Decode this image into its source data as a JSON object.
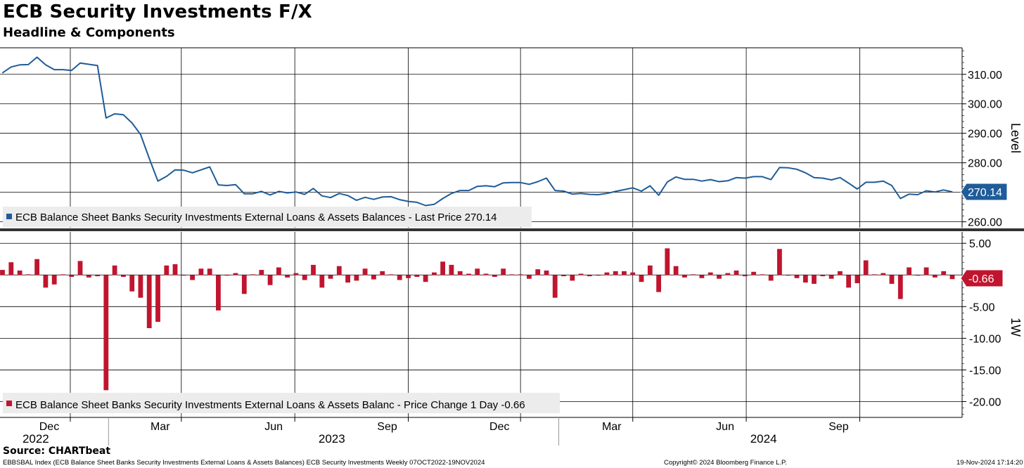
{
  "header": {
    "title": "ECB Security Investments F/X",
    "subtitle": "Headline & Components"
  },
  "footer": {
    "source": "Source: CHARTbeat",
    "description": "EBBSBAL Index (ECB Balance Sheet Banks Security Investments External Loans & Assets Balances) ECB Security Investments  Weekly 07OCT2022-19NOV2024",
    "copyright": "Copyright© 2024 Bloomberg Finance L.P.",
    "timestamp": "19-Nov-2024 17:14:20"
  },
  "colors": {
    "level": "#1f5c99",
    "change": "#c0152f",
    "grid": "#000000",
    "legend_bg": "#ececec"
  },
  "chart_data": [
    {
      "type": "line",
      "ylabel": "Level",
      "ylim": [
        258,
        319
      ],
      "yticks": [
        "260.00",
        "270.00",
        "280.00",
        "290.00",
        "300.00",
        "310.00"
      ],
      "legend": "ECB Balance Sheet Banks Security Investments External Loans & Assets Balances - Last Price 270.14",
      "last_value_label": "270.14",
      "x_start": "2022-10-07",
      "x_interval_days": 7,
      "values": [
        310.5,
        312.5,
        313.2,
        313.3,
        315.8,
        313.2,
        311.6,
        311.6,
        311.3,
        313.8,
        313.4,
        313.0,
        295.2,
        296.6,
        296.3,
        293.5,
        289.6,
        281.5,
        273.8,
        275.4,
        277.6,
        277.5,
        276.6,
        277.6,
        278.6,
        272.5,
        272.3,
        272.6,
        269.5,
        269.5,
        270.3,
        269.1,
        270.3,
        269.8,
        270.1,
        269.3,
        271.3,
        268.8,
        268.2,
        269.6,
        268.9,
        267.3,
        268.3,
        267.6,
        268.4,
        268.5,
        267.5,
        266.9,
        266.6,
        265.5,
        265.9,
        267.9,
        269.6,
        270.6,
        270.6,
        272.0,
        272.2,
        271.9,
        273.2,
        273.3,
        273.3,
        272.7,
        273.6,
        274.8,
        270.6,
        270.4,
        269.4,
        269.6,
        269.3,
        269.2,
        269.6,
        270.3,
        270.9,
        271.5,
        270.4,
        272.2,
        269.0,
        273.5,
        275.2,
        274.4,
        274.4,
        273.8,
        274.3,
        273.6,
        273.9,
        275.0,
        274.8,
        275.3,
        275.3,
        274.3,
        278.4,
        278.3,
        277.8,
        276.6,
        275.0,
        274.8,
        274.2,
        275.0,
        273.1,
        271.1,
        273.4,
        273.4,
        273.8,
        272.3,
        267.9,
        269.4,
        269.2,
        270.5,
        270.1,
        270.8,
        270.14
      ]
    },
    {
      "type": "bar",
      "ylabel": "1W",
      "ylim": [
        -22.5,
        6.8
      ],
      "yticks": [
        "5.00",
        "-5.00",
        "-10.00",
        "-15.00",
        "-20.00"
      ],
      "legend": "ECB Balance Sheet Banks Security Investments External Loans & Assets Balanc - Price Change 1 Day -0.66",
      "last_value_label": "-0.66",
      "x_start": "2022-10-07",
      "x_interval_days": 7,
      "values": [
        0.8,
        2.0,
        0.7,
        0.1,
        2.5,
        -2.0,
        -1.5,
        0.1,
        -0.3,
        2.2,
        -0.4,
        -0.2,
        -18.2,
        1.5,
        -0.3,
        -2.6,
        -3.6,
        -8.4,
        -7.4,
        1.5,
        1.7,
        -0.1,
        -0.8,
        1.0,
        1.0,
        -5.6,
        -0.1,
        0.3,
        -3.0,
        0.1,
        0.8,
        -1.6,
        1.2,
        -0.4,
        0.3,
        -0.8,
        1.6,
        -2.0,
        -0.6,
        1.4,
        -1.2,
        -0.9,
        1.0,
        -0.7,
        0.6,
        0.1,
        -0.8,
        -0.5,
        -0.3,
        -1.1,
        0.4,
        2.1,
        1.6,
        0.6,
        0.2,
        1.0,
        0.2,
        -0.3,
        1.0,
        0.1,
        0.1,
        -0.6,
        0.9,
        0.7,
        -3.6,
        -0.2,
        -0.9,
        0.2,
        -0.2,
        -0.1,
        0.4,
        0.6,
        0.6,
        0.4,
        -1.1,
        1.5,
        -2.7,
        4.2,
        1.4,
        -0.4,
        0.1,
        -0.5,
        0.4,
        -0.6,
        0.3,
        0.7,
        -0.2,
        0.5,
        0.1,
        -0.9,
        4.1,
        -0.1,
        -0.5,
        -1.2,
        -1.4,
        -0.2,
        -0.6,
        0.6,
        -2.0,
        -1.3,
        2.3,
        0.1,
        0.3,
        -1.4,
        -3.8,
        1.2,
        -0.1,
        1.2,
        -0.4,
        0.6,
        -0.66
      ]
    }
  ],
  "x_axis": {
    "months": [
      {
        "label": "Dec",
        "date": "2022-12-01"
      },
      {
        "label": "Mar",
        "date": "2023-03-01"
      },
      {
        "label": "Jun",
        "date": "2023-06-01"
      },
      {
        "label": "Sep",
        "date": "2023-09-01"
      },
      {
        "label": "Dec",
        "date": "2023-12-01"
      },
      {
        "label": "Mar",
        "date": "2024-03-01"
      },
      {
        "label": "Jun",
        "date": "2024-06-01"
      },
      {
        "label": "Sep",
        "date": "2024-09-01"
      }
    ],
    "years": [
      {
        "label": "2022",
        "center": "2022-11-03"
      },
      {
        "label": "2023",
        "center": "2023-07-01"
      },
      {
        "label": "2024",
        "center": "2024-06-15"
      }
    ],
    "year_dividers": [
      "2023-01-01",
      "2024-01-01"
    ],
    "range": [
      "2022-10-05",
      "2024-11-23"
    ]
  }
}
